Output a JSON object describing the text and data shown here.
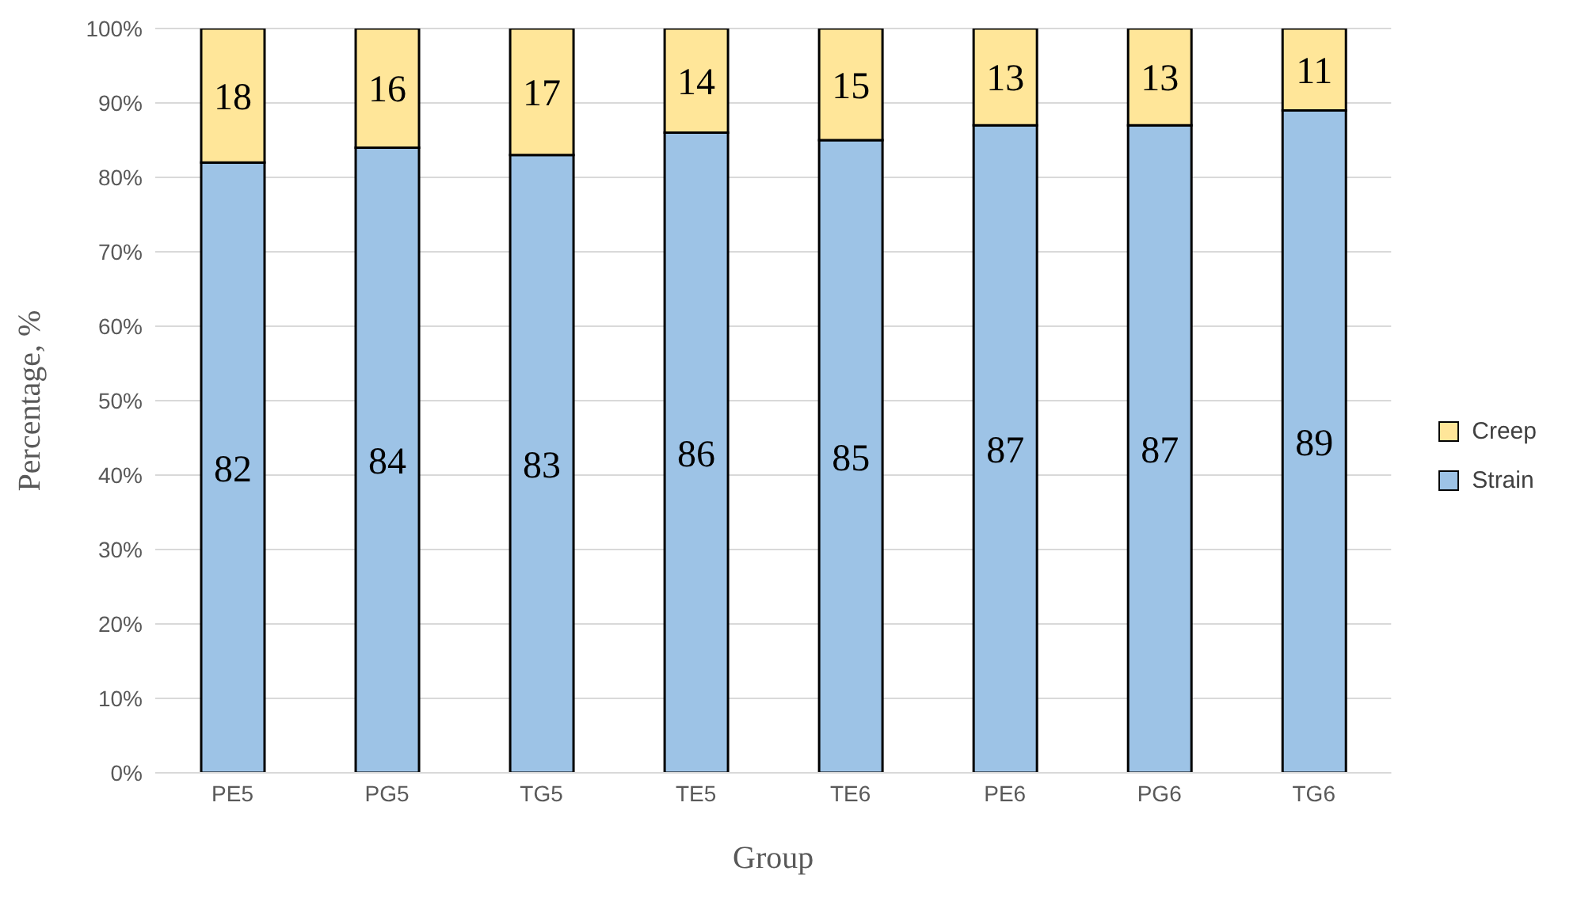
{
  "chart_data": {
    "type": "bar",
    "stacked": true,
    "xlabel": "Group",
    "ylabel": "Percentage, %",
    "categories": [
      "PE5",
      "PG5",
      "TG5",
      "TE5",
      "TE6",
      "PE6",
      "PG6",
      "TG6"
    ],
    "series": [
      {
        "name": "Strain",
        "color": "#9dc3e6",
        "values": [
          82,
          84,
          83,
          86,
          85,
          87,
          87,
          89
        ]
      },
      {
        "name": "Creep",
        "color": "#ffe699",
        "values": [
          18,
          16,
          17,
          14,
          15,
          13,
          13,
          11
        ]
      }
    ],
    "ylim": [
      0,
      100
    ],
    "yticks": [
      {
        "value": 0,
        "label": "0%"
      },
      {
        "value": 10,
        "label": "10%"
      },
      {
        "value": 20,
        "label": "20%"
      },
      {
        "value": 30,
        "label": "30%"
      },
      {
        "value": 40,
        "label": "40%"
      },
      {
        "value": 50,
        "label": "50%"
      },
      {
        "value": 60,
        "label": "60%"
      },
      {
        "value": 70,
        "label": "70%"
      },
      {
        "value": 80,
        "label": "80%"
      },
      {
        "value": 90,
        "label": "90%"
      },
      {
        "value": 100,
        "label": "100%"
      }
    ],
    "grid": "y",
    "legend": "right",
    "data_labels": true
  }
}
